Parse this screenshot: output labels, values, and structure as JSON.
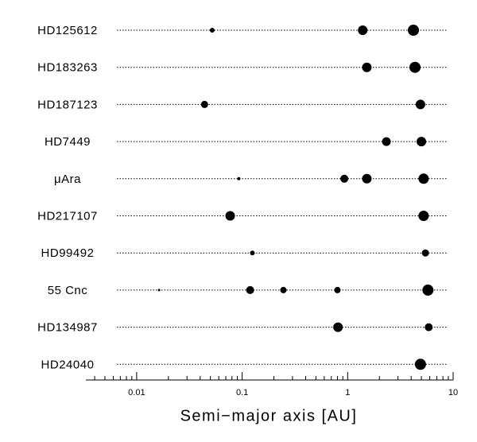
{
  "chart_data": {
    "type": "scatter",
    "xlabel": "Semi−major axis [AU]",
    "xscale": "log",
    "xlim": [
      0.0033,
      10
    ],
    "xticks": [
      0.01,
      0.1,
      1,
      10
    ],
    "minor_xticks": [
      0.004,
      0.005,
      0.006,
      0.007,
      0.008,
      0.009,
      0.02,
      0.03,
      0.04,
      0.05,
      0.06,
      0.07,
      0.08,
      0.09,
      0.2,
      0.3,
      0.4,
      0.5,
      0.6,
      0.7,
      0.8,
      0.9,
      2,
      3,
      4,
      5,
      6,
      7,
      8,
      9
    ],
    "color": "#000000",
    "series": [
      {
        "name": "HD125612",
        "x": [
          0.052,
          1.39,
          4.2
        ],
        "sizes": [
          3,
          6,
          7
        ]
      },
      {
        "name": "HD183263",
        "x": [
          1.52,
          4.35
        ],
        "sizes": [
          6,
          7
        ]
      },
      {
        "name": "HD187123",
        "x": [
          0.044,
          4.9
        ],
        "sizes": [
          4.5,
          6
        ]
      },
      {
        "name": "HD7449",
        "x": [
          2.33,
          5.0
        ],
        "sizes": [
          5.5,
          6
        ]
      },
      {
        "name": "μAra",
        "x": [
          0.093,
          0.93,
          1.52,
          5.25
        ],
        "sizes": [
          2,
          5,
          6,
          6.5
        ]
      },
      {
        "name": "HD217107",
        "x": [
          0.077,
          5.25
        ],
        "sizes": [
          6,
          6.5
        ]
      },
      {
        "name": "HD99492",
        "x": [
          0.125,
          5.46
        ],
        "sizes": [
          3,
          4.5
        ]
      },
      {
        "name": "55 Cnc",
        "x": [
          0.0163,
          0.119,
          0.246,
          0.8,
          5.77
        ],
        "sizes": [
          1.5,
          5,
          4,
          4,
          7
        ]
      },
      {
        "name": "HD134987",
        "x": [
          0.81,
          5.87
        ],
        "sizes": [
          6,
          5
        ]
      },
      {
        "name": "HD24040",
        "x": [
          4.9
        ],
        "sizes": [
          7
        ]
      }
    ]
  }
}
